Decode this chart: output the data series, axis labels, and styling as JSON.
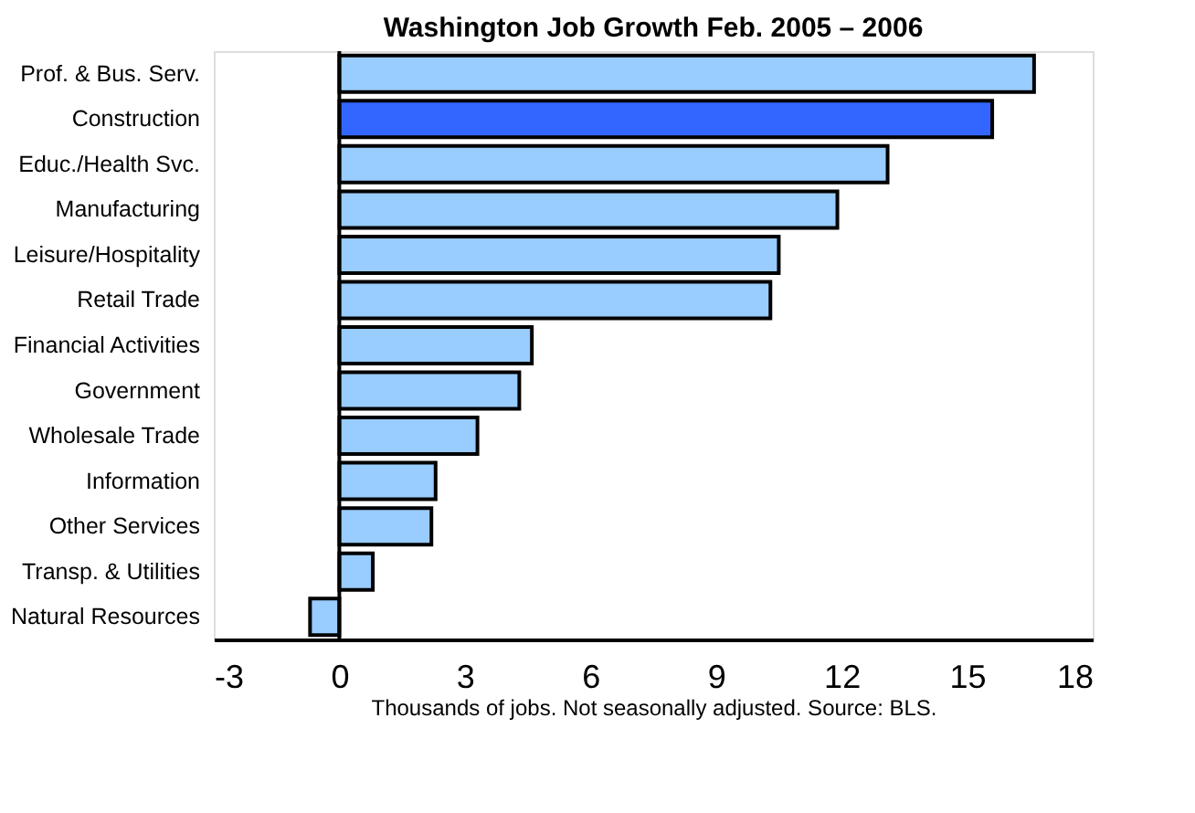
{
  "chart_data": {
    "type": "bar",
    "orientation": "horizontal",
    "title": "Washington Job Growth Feb. 2005 – 2006",
    "xlabel": "Thousands of jobs.  Not seasonally adjusted.  Source: BLS.",
    "categories": [
      "Prof. & Bus. Serv.",
      "Construction",
      "Educ./Health Svc.",
      "Manufacturing",
      "Leisure/Hospitality",
      "Retail Trade",
      "Financial Activities",
      "Government",
      "Wholesale Trade",
      "Information",
      "Other Services",
      "Transp. & Utilities",
      "Natural Resources"
    ],
    "values": [
      16.6,
      15.6,
      13.1,
      11.9,
      10.5,
      10.3,
      4.6,
      4.3,
      3.3,
      2.3,
      2.2,
      0.8,
      -0.7
    ],
    "colors": [
      "#99ccff",
      "#3366ff",
      "#99ccff",
      "#99ccff",
      "#99ccff",
      "#99ccff",
      "#99ccff",
      "#99ccff",
      "#99ccff",
      "#99ccff",
      "#99ccff",
      "#99ccff",
      "#99ccff"
    ],
    "xlim": [
      -3,
      18
    ],
    "xticks": [
      -3,
      0,
      3,
      6,
      9,
      12,
      15,
      18
    ],
    "ref_lines": [
      {
        "axis": "x",
        "value": 0
      }
    ],
    "grid": false
  }
}
